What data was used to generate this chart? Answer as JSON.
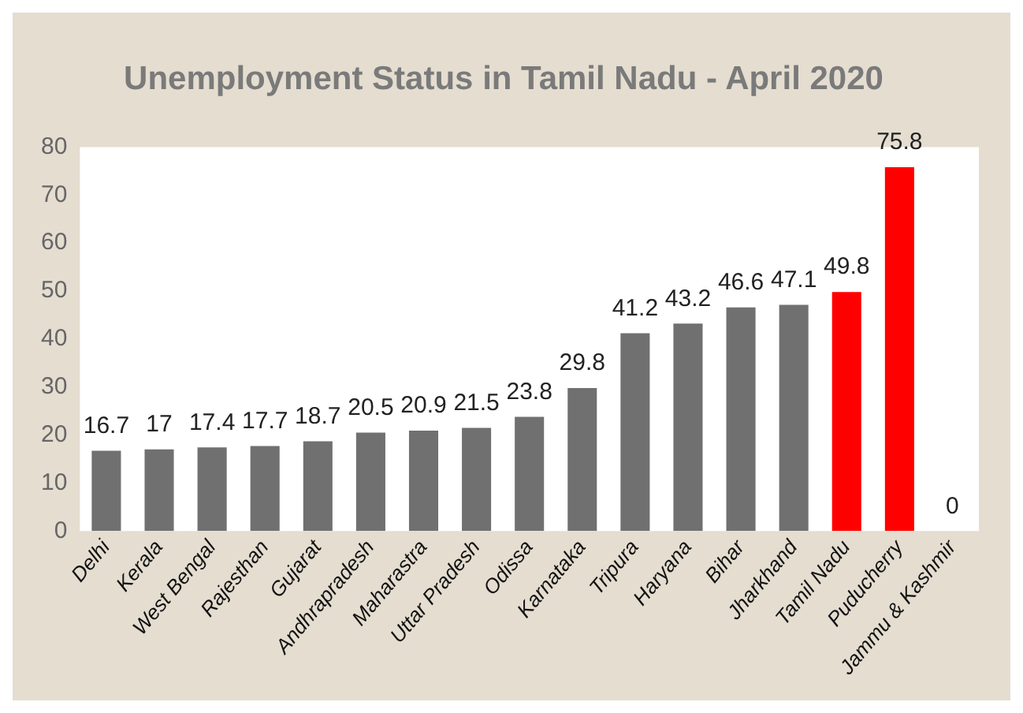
{
  "chart_data": {
    "type": "bar",
    "title": "Unemployment Status in Tamil Nadu - April 2020",
    "categories": [
      "Delhi",
      "Kerala",
      "West Bengal",
      "Rajesthan",
      "Gujarat",
      "Andhrapradesh",
      "Maharastra",
      "Uttar Pradesh",
      "Odissa",
      "Karnataka",
      "Tripura",
      "Haryana",
      "Bihar",
      "Jharkhand",
      "Tamil Nadu",
      "Puducherry",
      "Jammu & Kashmir"
    ],
    "values": [
      16.7,
      17,
      17.4,
      17.7,
      18.7,
      20.5,
      20.9,
      21.5,
      23.8,
      29.8,
      41.2,
      43.2,
      46.6,
      47.1,
      49.8,
      75.8,
      0
    ],
    "colors": [
      "#707070",
      "#707070",
      "#707070",
      "#707070",
      "#707070",
      "#707070",
      "#707070",
      "#707070",
      "#707070",
      "#707070",
      "#707070",
      "#707070",
      "#707070",
      "#707070",
      "#ff0000",
      "#ff0000",
      "#707070"
    ],
    "ylim": [
      0,
      80
    ],
    "yticks": [
      0,
      10,
      20,
      30,
      40,
      50,
      60,
      70,
      80
    ],
    "grid": false,
    "data_labels": true,
    "legend": false
  }
}
